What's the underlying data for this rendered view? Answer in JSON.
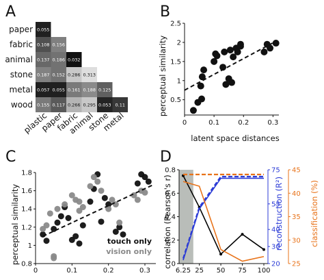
{
  "panels": {
    "a": "A",
    "b": "B",
    "c": "C",
    "d": "D"
  },
  "chart_data": [
    {
      "panel": "A",
      "type": "heatmap",
      "rows": [
        "paper",
        "fabric",
        "animal",
        "stone",
        "metal",
        "wood"
      ],
      "cols": [
        "plastic",
        "paper",
        "fabric",
        "animal",
        "stone",
        "metal"
      ],
      "cells": [
        [
          "0.055"
        ],
        [
          "0.108",
          "0.156"
        ],
        [
          "0.137",
          "0.186",
          "0.032"
        ],
        [
          "0.187",
          "0.152",
          "0.286",
          "0.313"
        ],
        [
          "0.057",
          "0.055",
          "0.161",
          "0.188",
          "0.125"
        ],
        [
          "0.155",
          "0.117",
          "0.266",
          "0.295",
          "0.053",
          "0.11"
        ]
      ],
      "cell_colors": [
        [
          "#202020"
        ],
        [
          "#505050",
          "#808080"
        ],
        [
          "#686868",
          "#727272",
          "#111111"
        ],
        [
          "#828282",
          "#727272",
          "#c8c8c8",
          "#dedede"
        ],
        [
          "#202020",
          "#202020",
          "#7a7a7a",
          "#8a8a8a",
          "#606060"
        ],
        [
          "#7a7a7a",
          "#5a5a5a",
          "#b4b4b4",
          "#c8c8c8",
          "#242424",
          "#383838"
        ]
      ]
    },
    {
      "panel": "B",
      "type": "scatter",
      "xlabel": "latent space distances",
      "ylabel": "perceptual similarity",
      "xlim": [
        0,
        0.32
      ],
      "ylim": [
        0.1,
        2.5
      ],
      "xticks": [
        "0",
        "0.1",
        "0.2",
        "0.3"
      ],
      "yticks": [
        "0.5",
        "1",
        "1.5",
        "2",
        "2.5"
      ],
      "points": [
        [
          0.03,
          0.22
        ],
        [
          0.045,
          0.43
        ],
        [
          0.055,
          0.86
        ],
        [
          0.058,
          0.52
        ],
        [
          0.06,
          1.1
        ],
        [
          0.065,
          1.28
        ],
        [
          0.1,
          1.5
        ],
        [
          0.105,
          1.7
        ],
        [
          0.11,
          1.65
        ],
        [
          0.13,
          1.35
        ],
        [
          0.135,
          1.75
        ],
        [
          0.14,
          0.9
        ],
        [
          0.15,
          1.05
        ],
        [
          0.155,
          1.8
        ],
        [
          0.16,
          0.95
        ],
        [
          0.165,
          1.62
        ],
        [
          0.175,
          1.85
        ],
        [
          0.18,
          1.75
        ],
        [
          0.19,
          1.95
        ],
        [
          0.19,
          1.9
        ],
        [
          0.27,
          1.75
        ],
        [
          0.28,
          1.95
        ],
        [
          0.29,
          1.85
        ],
        [
          0.31,
          1.98
        ]
      ],
      "fit": [
        [
          0,
          0.75
        ],
        [
          0.31,
          2.03
        ]
      ]
    },
    {
      "panel": "C",
      "type": "scatter",
      "ylabel": "perceptual similarity",
      "xlim": [
        0,
        0.33
      ],
      "ylim": [
        0.8,
        1.8
      ],
      "xticks": [
        "0",
        "0.1",
        "0.2",
        "0.3"
      ],
      "yticks": [
        "0.8",
        "1",
        "1.2",
        "1.4",
        "1.6",
        "1.8"
      ],
      "series": [
        {
          "name": "touch only",
          "color": "#111111",
          "points": [
            [
              0.02,
              1.12
            ],
            [
              0.03,
              1.05
            ],
            [
              0.05,
              1.18
            ],
            [
              0.06,
              1.25
            ],
            [
              0.07,
              1.32
            ],
            [
              0.08,
              1.42
            ],
            [
              0.09,
              1.3
            ],
            [
              0.1,
              1.06
            ],
            [
              0.11,
              1.1
            ],
            [
              0.12,
              1.02
            ],
            [
              0.13,
              1.22
            ],
            [
              0.15,
              1.48
            ],
            [
              0.16,
              1.62
            ],
            [
              0.17,
              1.78
            ],
            [
              0.18,
              1.26
            ],
            [
              0.19,
              1.52
            ],
            [
              0.2,
              1.45
            ],
            [
              0.22,
              1.15
            ],
            [
              0.23,
              1.2
            ],
            [
              0.28,
              1.68
            ],
            [
              0.29,
              1.78
            ],
            [
              0.3,
              1.75
            ],
            [
              0.31,
              1.7
            ],
            [
              0.24,
              1.12
            ]
          ]
        },
        {
          "name": "vision only",
          "color": "#8a8a8a",
          "points": [
            [
              0.02,
              1.18
            ],
            [
              0.03,
              1.22
            ],
            [
              0.04,
              1.35
            ],
            [
              0.05,
              0.88
            ],
            [
              0.05,
              0.86
            ],
            [
              0.06,
              1.4
            ],
            [
              0.08,
              1.45
            ],
            [
              0.1,
              1.55
            ],
            [
              0.11,
              1.5
            ],
            [
              0.12,
              1.38
            ],
            [
              0.13,
              1.42
            ],
            [
              0.15,
              1.65
            ],
            [
              0.16,
              1.75
            ],
            [
              0.17,
              1.7
            ],
            [
              0.18,
              1.6
            ],
            [
              0.2,
              1.4
            ],
            [
              0.21,
              1.5
            ],
            [
              0.22,
              1.45
            ],
            [
              0.23,
              1.25
            ],
            [
              0.27,
              1.55
            ],
            [
              0.28,
              1.5
            ],
            [
              0.29,
              1.6
            ],
            [
              0.3,
              1.58
            ],
            [
              0.12,
              1.48
            ]
          ]
        }
      ],
      "fit": [
        [
          0.02,
          1.1
        ],
        [
          0.32,
          1.66
        ]
      ]
    },
    {
      "panel": "D",
      "type": "line",
      "ylabel": "correlation (Pearson's r)",
      "y2label": "reconstruction (R²)",
      "y3label": "classification (%)",
      "categories": [
        "6.25",
        "25",
        "50",
        "75",
        "100"
      ],
      "xticks": [
        "6.25",
        "25",
        "50",
        "75",
        "100"
      ],
      "xlim": [
        6.25,
        100
      ],
      "ylim": [
        0,
        0.8
      ],
      "yticks": [
        "0",
        "0.2",
        "0.4",
        "0.6",
        "0.8"
      ],
      "y2lim": [
        20,
        75
      ],
      "y2ticks": [
        "20",
        "30",
        "40",
        "55",
        "75"
      ],
      "y3lim": [
        25,
        45
      ],
      "y3ticks": [
        "25",
        "30",
        "35",
        "40",
        "45"
      ],
      "highlight_x": [
        6.25,
        18
      ],
      "series": [
        {
          "name": "correlation",
          "color": "#000000",
          "style": "solid",
          "axis": "left",
          "x": [
            6.25,
            25,
            50,
            75,
            100
          ],
          "y": [
            0.75,
            0.48,
            0.08,
            0.25,
            0.12
          ]
        },
        {
          "name": "reconstruction",
          "color": "#2b3bd6",
          "style": "solid",
          "axis": "y2",
          "x": [
            6.25,
            25,
            50,
            75,
            100
          ],
          "y": [
            22,
            52,
            70,
            70,
            70
          ]
        },
        {
          "name": "reconstruction-dashed",
          "color": "#2b3bd6",
          "style": "dashed",
          "axis": "y2",
          "x": [
            6.25,
            25,
            50,
            75,
            100
          ],
          "y": [
            23,
            53,
            71,
            71,
            71
          ]
        },
        {
          "name": "classification",
          "color": "#e8731a",
          "style": "solid",
          "axis": "y3",
          "x": [
            6.25,
            25,
            50,
            75,
            100
          ],
          "y": [
            42.5,
            41.5,
            28,
            25.5,
            26.5
          ]
        },
        {
          "name": "classification-chance",
          "color": "#e8731a",
          "style": "dashed",
          "axis": "y3",
          "x": [
            6.25,
            100
          ],
          "y": [
            44,
            44
          ]
        }
      ]
    }
  ]
}
